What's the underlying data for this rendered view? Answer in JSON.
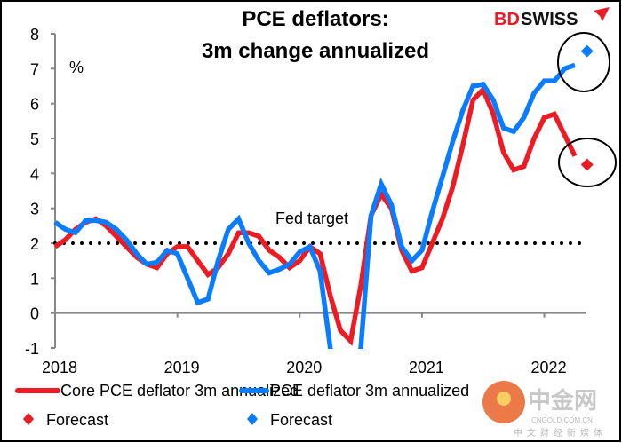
{
  "chart_data": {
    "type": "line",
    "title_line1": "PCE deflators:",
    "title_line2": "3m change annualized",
    "ylabel": "%",
    "ylim": [
      -1,
      8
    ],
    "yticks": [
      "-1",
      "0",
      "1",
      "2",
      "3",
      "4",
      "5",
      "6",
      "7",
      "8"
    ],
    "xticks": [
      "2018",
      "2019",
      "2020",
      "2021",
      "2022"
    ],
    "x_start": "2018-01",
    "grid": false,
    "legend_position": "bottom",
    "reference_line": {
      "label": "Fed target",
      "value": 2
    },
    "series": [
      {
        "name": "Core PCE deflator 3m annualized",
        "color": "#ED1C24",
        "values": [
          1.9,
          2.1,
          2.4,
          2.6,
          2.7,
          2.5,
          2.2,
          1.9,
          1.6,
          1.4,
          1.3,
          1.7,
          1.9,
          1.9,
          1.5,
          1.1,
          1.3,
          1.7,
          2.3,
          2.3,
          2.2,
          1.8,
          1.6,
          1.3,
          1.5,
          1.9,
          1.7,
          0.5,
          -0.5,
          -0.8,
          0.8,
          2.8,
          3.4,
          3.0,
          1.8,
          1.2,
          1.3,
          2.0,
          2.7,
          3.6,
          4.8,
          6.1,
          6.4,
          5.7,
          4.6,
          4.1,
          4.2,
          5.0,
          5.6,
          5.7,
          5.1,
          4.5
        ]
      },
      {
        "name": "PCE deflator 3m annualized",
        "color": "#0A7CFF",
        "values": [
          2.6,
          2.4,
          2.3,
          2.65,
          2.65,
          2.6,
          2.4,
          2.1,
          1.7,
          1.4,
          1.45,
          1.8,
          1.7,
          1.0,
          0.3,
          0.4,
          1.5,
          2.4,
          2.7,
          2.0,
          1.5,
          1.15,
          1.25,
          1.4,
          1.75,
          1.9,
          1.2,
          -1.0,
          -2.5,
          -2.0,
          -1.0,
          2.8,
          3.7,
          3.1,
          1.9,
          1.5,
          1.8,
          2.9,
          3.9,
          4.9,
          5.8,
          6.5,
          6.55,
          6.1,
          5.3,
          5.2,
          5.6,
          6.3,
          6.65,
          6.65,
          7.0,
          7.1
        ]
      }
    ],
    "forecasts": [
      {
        "name": "Forecast",
        "color": "#ED1C24",
        "month": "2022-05",
        "value": 4.25
      },
      {
        "name": "Forecast",
        "color": "#0A7CFF",
        "month": "2022-05",
        "value": 7.5
      }
    ]
  },
  "logo": {
    "text_bd": "BD",
    "text_swiss": "SWISS",
    "bd_color": "#ED1C24"
  },
  "watermark": {
    "brand": "中金网",
    "site": "CNGOLD.COM.CN",
    "tagline": "中文财经新媒体"
  }
}
